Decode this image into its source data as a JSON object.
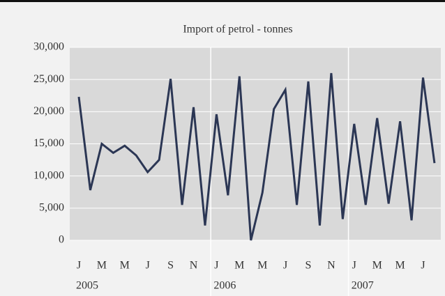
{
  "chart_data": {
    "type": "line",
    "title": "Import of petrol - tonnes",
    "categories": [
      "J",
      null,
      "M",
      null,
      "M",
      null,
      "J",
      null,
      "S",
      null,
      "N",
      null,
      "J",
      null,
      "M",
      null,
      "M",
      null,
      "J",
      null,
      "S",
      null,
      "N",
      null,
      "J",
      null,
      "M",
      null,
      "M",
      null,
      "J",
      null
    ],
    "groups": [
      "2005",
      "2006",
      "2007"
    ],
    "series": [
      {
        "color": "#2b3654",
        "values": [
          22300,
          7800,
          15000,
          13600,
          14700,
          13200,
          10600,
          12500,
          25100,
          5500,
          20700,
          2300,
          19600,
          7000,
          25500,
          0,
          7400,
          20400,
          23400,
          5500,
          24700,
          2300,
          26000,
          3300,
          18100,
          5500,
          19000,
          5700,
          18500,
          3100,
          25300,
          12000
        ]
      }
    ],
    "ylim": [
      0,
      30000
    ],
    "yticks": [
      0,
      {
        "value": 5000,
        "label": "5,000"
      },
      {
        "value": 10000,
        "label": "10,000"
      },
      {
        "value": 15000,
        "label": "15,000"
      },
      {
        "value": 20000,
        "label": "20,000"
      },
      {
        "value": 25000,
        "label": "25,000"
      },
      {
        "value": 30000,
        "label": "30,000"
      }
    ],
    "grid": true
  }
}
